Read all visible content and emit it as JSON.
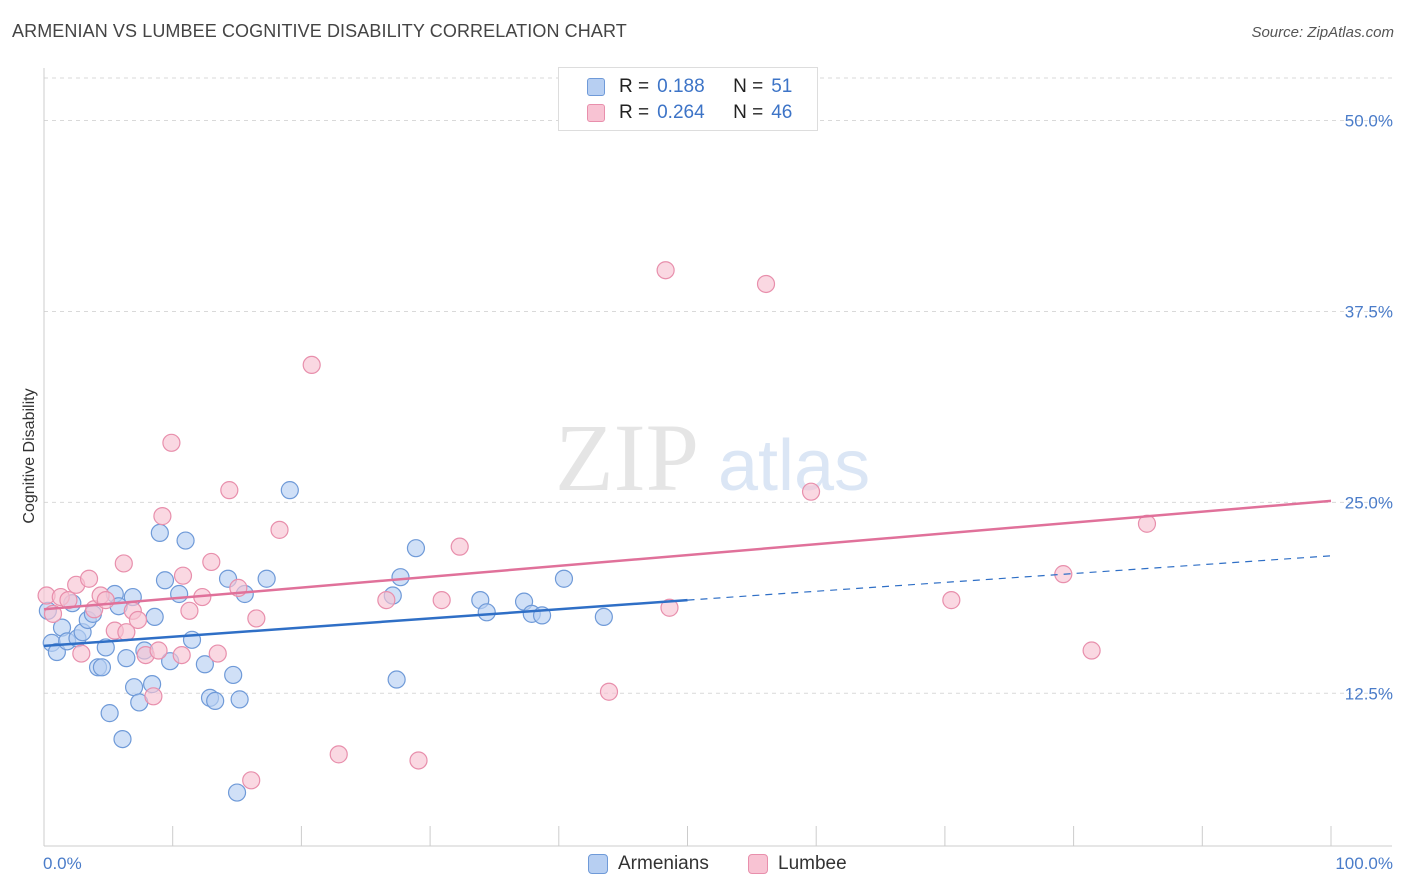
{
  "header": {
    "title": "ARMENIAN VS LUMBEE COGNITIVE DISABILITY CORRELATION CHART",
    "source": "Source: ZipAtlas.com"
  },
  "legend": {
    "rows": [
      {
        "r_label": "R =",
        "r_value": "0.188",
        "n_label": "N =",
        "n_value": "51"
      },
      {
        "r_label": "R =",
        "r_value": "0.264",
        "n_label": "N =",
        "n_value": "46"
      }
    ]
  },
  "colors": {
    "blue_fill": "#b7cff2",
    "blue_stroke": "#6f9ad8",
    "blue_line": "#2f6fc6",
    "pink_fill": "#f8c3d3",
    "pink_stroke": "#e88fac",
    "pink_line": "#e0719a",
    "grid": "#d9d9d9",
    "tick_label": "#4a7cc9"
  },
  "watermark": {
    "zip": "ZIP",
    "atlas": "atlas"
  },
  "chart_data": {
    "type": "scatter",
    "ylabel": "Cognitive Disability",
    "xlim": [
      0,
      100
    ],
    "ylim": [
      2.5,
      52
    ],
    "y_ticks": [
      {
        "value": 12.5,
        "label": "12.5%"
      },
      {
        "value": 25.0,
        "label": "25.0%"
      },
      {
        "value": 37.5,
        "label": "37.5%"
      },
      {
        "value": 50.0,
        "label": "50.0%"
      }
    ],
    "x_tick_labels": {
      "left": "0.0%",
      "right": "100.0%"
    },
    "series": [
      {
        "name": "Armenians",
        "points": [
          [
            0.3,
            17.9
          ],
          [
            0.6,
            15.8
          ],
          [
            1.0,
            15.2
          ],
          [
            1.4,
            16.8
          ],
          [
            1.8,
            15.9
          ],
          [
            2.2,
            18.4
          ],
          [
            2.6,
            16.1
          ],
          [
            3.0,
            16.5
          ],
          [
            3.4,
            17.3
          ],
          [
            3.8,
            17.7
          ],
          [
            4.2,
            14.2
          ],
          [
            4.5,
            14.2
          ],
          [
            4.8,
            15.5
          ],
          [
            5.1,
            11.2
          ],
          [
            5.5,
            19.0
          ],
          [
            5.8,
            18.2
          ],
          [
            6.1,
            9.5
          ],
          [
            6.4,
            14.8
          ],
          [
            6.9,
            18.8
          ],
          [
            7.0,
            12.9
          ],
          [
            7.4,
            11.9
          ],
          [
            7.8,
            15.3
          ],
          [
            8.4,
            13.1
          ],
          [
            8.6,
            17.5
          ],
          [
            9.0,
            23.0
          ],
          [
            9.4,
            19.9
          ],
          [
            9.8,
            14.6
          ],
          [
            10.5,
            19.0
          ],
          [
            11.0,
            22.5
          ],
          [
            11.5,
            16.0
          ],
          [
            12.5,
            14.4
          ],
          [
            12.9,
            12.2
          ],
          [
            13.3,
            12.0
          ],
          [
            14.3,
            20.0
          ],
          [
            14.7,
            13.7
          ],
          [
            15.2,
            12.1
          ],
          [
            15.6,
            19.0
          ],
          [
            17.3,
            20.0
          ],
          [
            19.1,
            25.8
          ],
          [
            27.1,
            18.9
          ],
          [
            27.4,
            13.4
          ],
          [
            27.7,
            20.1
          ],
          [
            28.9,
            22.0
          ],
          [
            33.9,
            18.6
          ],
          [
            34.4,
            17.8
          ],
          [
            37.3,
            18.5
          ],
          [
            37.9,
            17.7
          ],
          [
            38.7,
            17.6
          ],
          [
            40.4,
            20.0
          ],
          [
            43.5,
            17.5
          ],
          [
            15.0,
            6.0
          ]
        ]
      },
      {
        "name": "Lumbee",
        "points": [
          [
            0.2,
            18.9
          ],
          [
            0.7,
            17.7
          ],
          [
            1.3,
            18.8
          ],
          [
            1.9,
            18.6
          ],
          [
            2.5,
            19.6
          ],
          [
            2.9,
            15.1
          ],
          [
            3.5,
            20.0
          ],
          [
            3.9,
            18.0
          ],
          [
            4.4,
            18.9
          ],
          [
            4.8,
            18.6
          ],
          [
            5.5,
            16.6
          ],
          [
            6.2,
            21.0
          ],
          [
            6.4,
            16.5
          ],
          [
            6.9,
            17.9
          ],
          [
            7.3,
            17.3
          ],
          [
            7.9,
            15.0
          ],
          [
            8.5,
            12.3
          ],
          [
            8.9,
            15.3
          ],
          [
            9.2,
            24.1
          ],
          [
            9.9,
            28.9
          ],
          [
            10.8,
            20.2
          ],
          [
            10.7,
            15.0
          ],
          [
            11.3,
            17.9
          ],
          [
            12.3,
            18.8
          ],
          [
            13.0,
            21.1
          ],
          [
            13.5,
            15.1
          ],
          [
            14.4,
            25.8
          ],
          [
            15.1,
            19.4
          ],
          [
            16.1,
            6.8
          ],
          [
            16.5,
            17.4
          ],
          [
            18.3,
            23.2
          ],
          [
            20.8,
            34.0
          ],
          [
            22.9,
            8.5
          ],
          [
            26.6,
            18.6
          ],
          [
            29.1,
            8.1
          ],
          [
            30.9,
            18.6
          ],
          [
            32.3,
            22.1
          ],
          [
            43.9,
            12.6
          ],
          [
            48.3,
            40.2
          ],
          [
            48.6,
            18.1
          ],
          [
            56.1,
            39.3
          ],
          [
            59.6,
            25.7
          ],
          [
            70.5,
            18.6
          ],
          [
            79.2,
            20.3
          ],
          [
            81.4,
            15.3
          ],
          [
            85.7,
            23.6
          ]
        ]
      }
    ],
    "trend_lines": [
      {
        "series": "Armenians",
        "x": [
          0,
          50
        ],
        "y": [
          15.6,
          18.6
        ],
        "dashed_to_x": 100,
        "dashed_to_y": 21.5
      },
      {
        "series": "Lumbee",
        "x": [
          0,
          100
        ],
        "y": [
          18.0,
          25.1
        ]
      }
    ],
    "grid": true,
    "legend_position": "top-center"
  }
}
